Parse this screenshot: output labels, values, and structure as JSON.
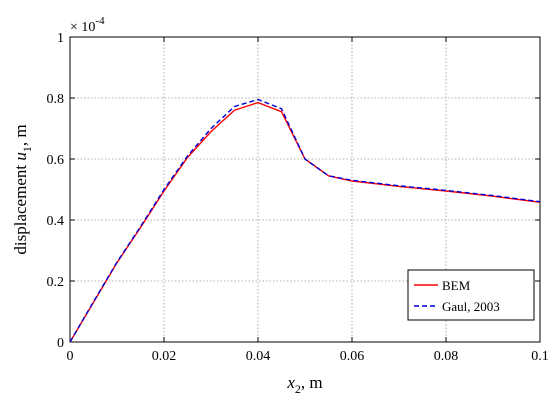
{
  "chart_data": {
    "type": "line",
    "xlabel": {
      "var": "x",
      "sub": "2",
      "unit": ", m"
    },
    "ylabel": {
      "prefix": "displacement ",
      "var": "u",
      "sub": "1",
      "unit": ", m"
    },
    "exponent": {
      "base": "× 10",
      "power": "-4"
    },
    "xlim": [
      0,
      0.1
    ],
    "ylim": [
      0,
      1
    ],
    "xticks": [
      0,
      0.02,
      0.04,
      0.06,
      0.08,
      0.1
    ],
    "xtick_labels": [
      "0",
      "0.02",
      "0.04",
      "0.06",
      "0.08",
      "0.1"
    ],
    "yticks": [
      0,
      0.2,
      0.4,
      0.6,
      0.8,
      1
    ],
    "ytick_labels": [
      "0",
      "0.2",
      "0.4",
      "0.6",
      "0.8",
      "1"
    ],
    "grid": true,
    "legend_position": "bottom-right",
    "series": [
      {
        "name": "BEM",
        "color": "#ff0000",
        "dash": "solid",
        "x": [
          0,
          0.005,
          0.01,
          0.015,
          0.02,
          0.025,
          0.03,
          0.035,
          0.04,
          0.045,
          0.05,
          0.055,
          0.06,
          0.07,
          0.08,
          0.09,
          0.1
        ],
        "y": [
          0,
          0.13,
          0.26,
          0.375,
          0.495,
          0.605,
          0.69,
          0.76,
          0.785,
          0.755,
          0.6,
          0.545,
          0.528,
          0.51,
          0.495,
          0.478,
          0.458
        ]
      },
      {
        "name": "Gaul, 2003",
        "color": "#0000dd",
        "dash": "dashed",
        "x": [
          0,
          0.005,
          0.01,
          0.015,
          0.02,
          0.025,
          0.03,
          0.035,
          0.04,
          0.045,
          0.05,
          0.055,
          0.06,
          0.07,
          0.08,
          0.09,
          0.1
        ],
        "y": [
          0,
          0.132,
          0.262,
          0.378,
          0.5,
          0.61,
          0.7,
          0.772,
          0.795,
          0.765,
          0.6,
          0.545,
          0.53,
          0.512,
          0.497,
          0.48,
          0.46
        ]
      }
    ]
  }
}
